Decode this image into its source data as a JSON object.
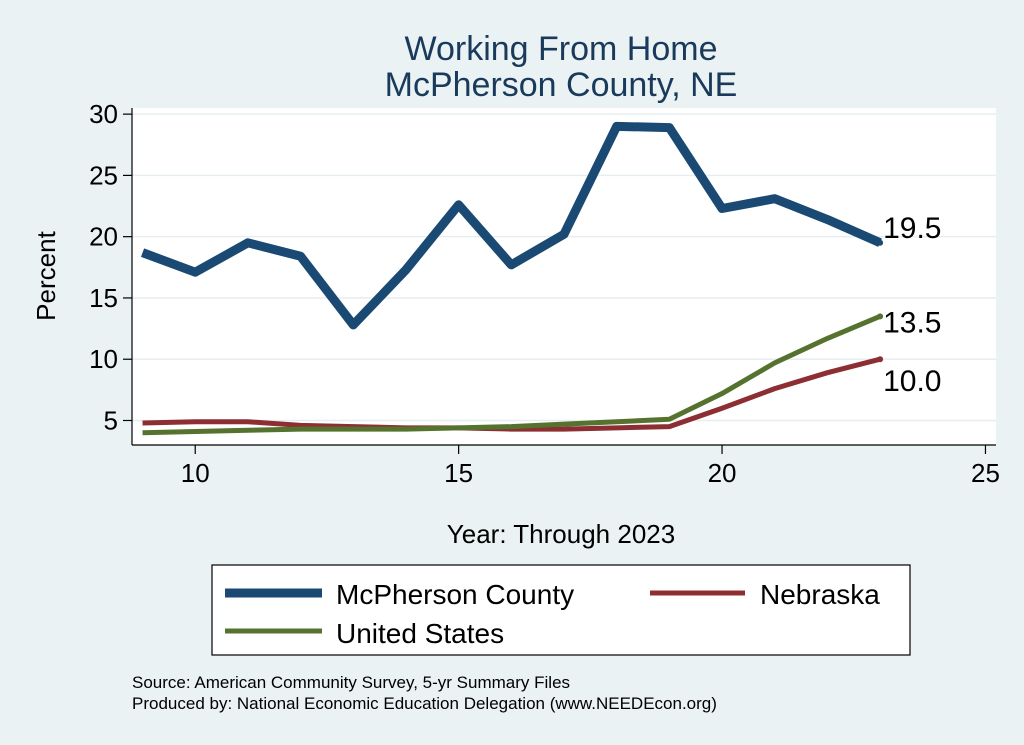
{
  "chart_data": {
    "type": "line",
    "title": "Working From Home",
    "subtitle": "McPherson County, NE",
    "xlabel": "Year: Through 2023",
    "ylabel": "Percent",
    "xlim": [
      8.8,
      25.2
    ],
    "ylim": [
      3.0,
      30.5
    ],
    "xticks": [
      10,
      15,
      20,
      25
    ],
    "yticks": [
      5,
      10,
      15,
      20,
      25,
      30
    ],
    "grid": true,
    "legend_position": "bottom",
    "series": [
      {
        "name": "McPherson County",
        "color": "#1a4a73",
        "x": [
          9,
          10,
          11,
          12,
          13,
          14,
          15,
          16,
          17,
          18,
          19,
          20,
          21,
          22,
          23
        ],
        "values": [
          18.7,
          17.1,
          19.5,
          18.4,
          12.8,
          17.3,
          22.6,
          17.7,
          20.2,
          29.0,
          28.9,
          22.3,
          23.1,
          21.4,
          19.5
        ],
        "end_label": "19.5"
      },
      {
        "name": "Nebraska",
        "color": "#8c2e32",
        "x": [
          9,
          10,
          11,
          12,
          13,
          14,
          15,
          16,
          17,
          18,
          19,
          20,
          21,
          22,
          23
        ],
        "values": [
          4.8,
          4.9,
          4.9,
          4.6,
          4.5,
          4.4,
          4.4,
          4.3,
          4.3,
          4.4,
          4.5,
          6.0,
          7.6,
          8.9,
          10.0
        ],
        "end_label": "10.0"
      },
      {
        "name": "United States",
        "color": "#55732e",
        "x": [
          9,
          10,
          11,
          12,
          13,
          14,
          15,
          16,
          17,
          18,
          19,
          20,
          21,
          22,
          23
        ],
        "values": [
          4.0,
          4.1,
          4.2,
          4.3,
          4.3,
          4.3,
          4.4,
          4.5,
          4.7,
          4.9,
          5.1,
          7.2,
          9.7,
          11.7,
          13.5
        ],
        "end_label": "13.5"
      }
    ],
    "source_line1": "Source: American Community Survey, 5-yr Summary Files",
    "source_line2": "Produced by: National Economic Education Delegation (www.NEEDEcon.org)"
  }
}
